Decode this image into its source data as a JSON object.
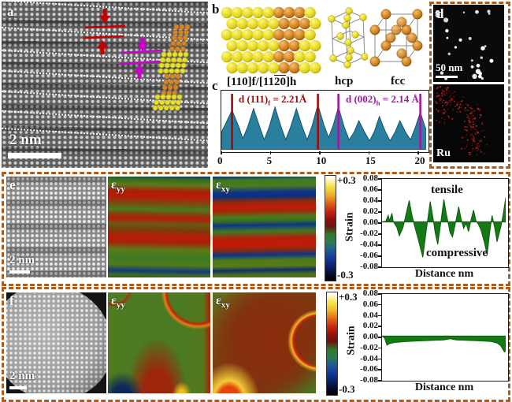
{
  "colors": {
    "dash_border": "#a85e22",
    "profile_fill": "#2a7f9e",
    "profile_stroke": "#14556e",
    "fcc_red": "#9e0b0b",
    "hcp_purple": "#a018a0",
    "strain_green": "#157a15",
    "strain_green_dark": "#0c5c0c",
    "atom_yellow": "#e6df2e",
    "atom_orange": "#d2862a"
  },
  "panel_a": {
    "label": "a",
    "scale_bar": "2 nm"
  },
  "panel_b": {
    "label": "b",
    "orientation_pre": "[110]f/[11",
    "orientation_bar": "20",
    "orientation_post": "]h",
    "hcp_label": "hcp",
    "fcc_label": "fcc"
  },
  "panel_c": {
    "label": "c"
  },
  "panel_d": {
    "label": "d",
    "scale_bar": "50 nm",
    "element_label": "Ru"
  },
  "panel_e": {
    "label": "e",
    "scale_bar": "2 nm",
    "colorbar_top": "+0.3",
    "colorbar_bottom": "-0.3",
    "maps": [
      {
        "pre": "ε",
        "sub": "yy"
      },
      {
        "pre": "ε",
        "sub": "xy"
      }
    ]
  },
  "panel_f": {
    "label": "f",
    "scale_bar": "2 nm",
    "colorbar_top": "+0.3",
    "colorbar_bottom": "-0.3",
    "maps": [
      {
        "pre": "ε",
        "sub": "yy"
      },
      {
        "pre": "ε",
        "sub": "xy"
      }
    ]
  },
  "chart_data": [
    {
      "id": "intensity-profile",
      "type": "area",
      "panel": "c",
      "xlabel": "",
      "ylabel": "",
      "xlim": [
        0,
        21
      ],
      "ylim": [
        0,
        1
      ],
      "xticks": [
        "0",
        "5",
        "10",
        "15",
        "20"
      ],
      "xtick_values": [
        0,
        5,
        10,
        15,
        20
      ],
      "fill": "#2a7f9e",
      "stroke": "#14556e",
      "marker_lines": [
        {
          "x": 1.1,
          "color": "#9e0b0b"
        },
        {
          "x": 9.9,
          "color": "#9e0b0b"
        },
        {
          "x": 12.0,
          "color": "#a018a0"
        },
        {
          "x": 20.4,
          "color": "#a018a0"
        }
      ],
      "annotations": {
        "fcc": {
          "pre": "d (111)",
          "sub": "f",
          "post": " = 2.21Å"
        },
        "hcp": {
          "pre": "d (002)",
          "sub": "h",
          "post": " = 2.14 Å"
        }
      },
      "peak_positions_fcc": [
        1.1,
        3.3,
        5.5,
        7.7,
        9.9
      ],
      "peak_positions_hcp": [
        12.0,
        14.1,
        16.2,
        18.3,
        20.4
      ],
      "points": [
        [
          0,
          0.3
        ],
        [
          0.4,
          0.45
        ],
        [
          1.1,
          0.72
        ],
        [
          1.8,
          0.4
        ],
        [
          2.2,
          0.18
        ],
        [
          2.7,
          0.4
        ],
        [
          3.3,
          0.75
        ],
        [
          3.9,
          0.42
        ],
        [
          4.4,
          0.16
        ],
        [
          4.9,
          0.4
        ],
        [
          5.5,
          0.78
        ],
        [
          6.1,
          0.42
        ],
        [
          6.6,
          0.16
        ],
        [
          7.1,
          0.4
        ],
        [
          7.7,
          0.75
        ],
        [
          8.3,
          0.4
        ],
        [
          8.8,
          0.16
        ],
        [
          9.3,
          0.42
        ],
        [
          9.9,
          0.82
        ],
        [
          10.5,
          0.45
        ],
        [
          11.0,
          0.2
        ],
        [
          11.5,
          0.45
        ],
        [
          12.0,
          0.78
        ],
        [
          12.6,
          0.4
        ],
        [
          13.1,
          0.16
        ],
        [
          13.6,
          0.3
        ],
        [
          14.1,
          0.52
        ],
        [
          14.7,
          0.3
        ],
        [
          15.2,
          0.14
        ],
        [
          15.7,
          0.32
        ],
        [
          16.2,
          0.6
        ],
        [
          16.8,
          0.32
        ],
        [
          17.3,
          0.14
        ],
        [
          17.8,
          0.3
        ],
        [
          18.3,
          0.52
        ],
        [
          18.9,
          0.3
        ],
        [
          19.4,
          0.16
        ],
        [
          19.9,
          0.4
        ],
        [
          20.4,
          0.68
        ],
        [
          20.8,
          0.45
        ],
        [
          21.0,
          0.35
        ]
      ]
    },
    {
      "id": "strain-profile-e",
      "type": "area",
      "panel": "e",
      "xlabel": "Distance nm",
      "ylabel": "Strain",
      "xlim": [
        0,
        1
      ],
      "ylim": [
        -0.08,
        0.08
      ],
      "yticks": [
        "0.08",
        "0.06",
        "0.04",
        "0.02",
        "0.00",
        "-0.02",
        "-0.04",
        "-0.06",
        "-0.08"
      ],
      "annotations": {
        "upper": "tensile",
        "lower": "compressive"
      },
      "fill": "#157a15",
      "stroke": "#0c5c0c",
      "baseline": 0,
      "points": [
        [
          0,
          0
        ],
        [
          0.03,
          0.001
        ],
        [
          0.05,
          0.012
        ],
        [
          0.06,
          0.002
        ],
        [
          0.08,
          0.016
        ],
        [
          0.09,
          0.001
        ],
        [
          0.12,
          -0.01
        ],
        [
          0.14,
          -0.026
        ],
        [
          0.17,
          -0.01
        ],
        [
          0.19,
          0.01
        ],
        [
          0.22,
          0.04
        ],
        [
          0.24,
          0.015
        ],
        [
          0.26,
          -0.005
        ],
        [
          0.29,
          -0.03
        ],
        [
          0.33,
          -0.066
        ],
        [
          0.35,
          -0.03
        ],
        [
          0.37,
          0.005
        ],
        [
          0.39,
          0.038
        ],
        [
          0.41,
          0.01
        ],
        [
          0.43,
          -0.02
        ],
        [
          0.45,
          -0.042
        ],
        [
          0.47,
          -0.01
        ],
        [
          0.5,
          0.042
        ],
        [
          0.52,
          0.015
        ],
        [
          0.55,
          -0.02
        ],
        [
          0.57,
          -0.028
        ],
        [
          0.6,
          0.005
        ],
        [
          0.62,
          0.028
        ],
        [
          0.64,
          0.005
        ],
        [
          0.66,
          -0.012
        ],
        [
          0.68,
          -0.003
        ],
        [
          0.7,
          -0.018
        ],
        [
          0.72,
          0.004
        ],
        [
          0.74,
          0.022
        ],
        [
          0.76,
          0.002
        ],
        [
          0.78,
          -0.005
        ],
        [
          0.8,
          -0.015
        ],
        [
          0.83,
          -0.04
        ],
        [
          0.85,
          -0.062
        ],
        [
          0.87,
          -0.02
        ],
        [
          0.89,
          0.012
        ],
        [
          0.91,
          -0.01
        ],
        [
          0.93,
          -0.037
        ],
        [
          0.96,
          -0.01
        ],
        [
          0.98,
          0.015
        ],
        [
          1.0,
          0.045
        ]
      ]
    },
    {
      "id": "strain-profile-f",
      "type": "area",
      "panel": "f",
      "xlabel": "Distance nm",
      "ylabel": "Strain",
      "xlim": [
        0,
        1
      ],
      "ylim": [
        -0.08,
        0.08
      ],
      "yticks": [
        "0.08",
        "0.06",
        "0.04",
        "0.02",
        "0.00",
        "-0.02",
        "-0.04",
        "-0.06",
        "-0.08"
      ],
      "annotations": {},
      "fill": "#157a15",
      "stroke": "#0c5c0c",
      "baseline": 0,
      "points": [
        [
          0,
          0
        ],
        [
          0.02,
          -0.003
        ],
        [
          0.04,
          -0.017
        ],
        [
          0.06,
          -0.014
        ],
        [
          0.1,
          -0.012
        ],
        [
          0.2,
          -0.01
        ],
        [
          0.3,
          -0.009
        ],
        [
          0.4,
          -0.008
        ],
        [
          0.5,
          -0.007
        ],
        [
          0.55,
          -0.005
        ],
        [
          0.6,
          -0.007
        ],
        [
          0.7,
          -0.008
        ],
        [
          0.8,
          -0.009
        ],
        [
          0.88,
          -0.01
        ],
        [
          0.93,
          -0.013
        ],
        [
          0.96,
          -0.018
        ],
        [
          0.99,
          -0.03
        ],
        [
          1.0,
          -0.028
        ]
      ]
    }
  ]
}
